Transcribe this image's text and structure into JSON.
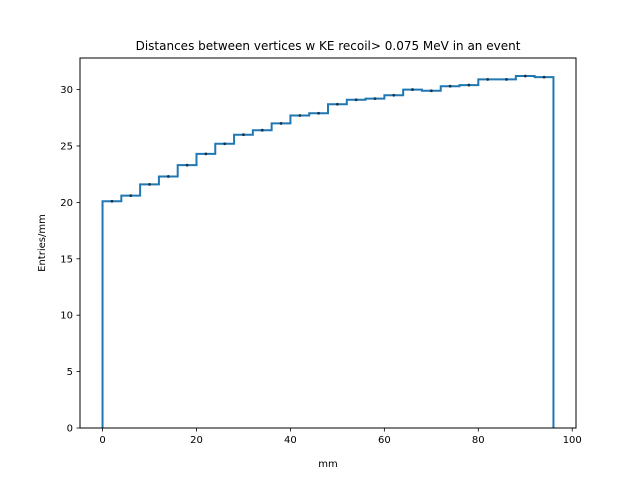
{
  "chart_data": {
    "type": "histogram-step",
    "title": "Distances between vertices w  KE recoil> 0.075 MeV in an event",
    "xlabel": "mm",
    "ylabel": "Entries/mm",
    "xlim": [
      -4.8,
      100.8
    ],
    "ylim": [
      0,
      32.8
    ],
    "x_ticks": [
      0,
      20,
      40,
      60,
      80,
      100
    ],
    "y_ticks": [
      0,
      5,
      10,
      15,
      20,
      25,
      30
    ],
    "grid": false,
    "series_color": "#1f77b4",
    "bin_edges": [
      0,
      4,
      8,
      12,
      16,
      20,
      24,
      28,
      32,
      36,
      40,
      44,
      48,
      52,
      56,
      60,
      64,
      68,
      72,
      76,
      80,
      84,
      88,
      92,
      96
    ],
    "values": [
      20.1,
      20.6,
      21.6,
      22.3,
      23.3,
      24.3,
      25.2,
      26.0,
      26.4,
      27.0,
      27.7,
      27.9,
      28.7,
      29.1,
      29.2,
      29.5,
      30.0,
      29.9,
      30.3,
      30.4,
      30.9,
      30.9,
      31.2,
      31.1
    ]
  }
}
